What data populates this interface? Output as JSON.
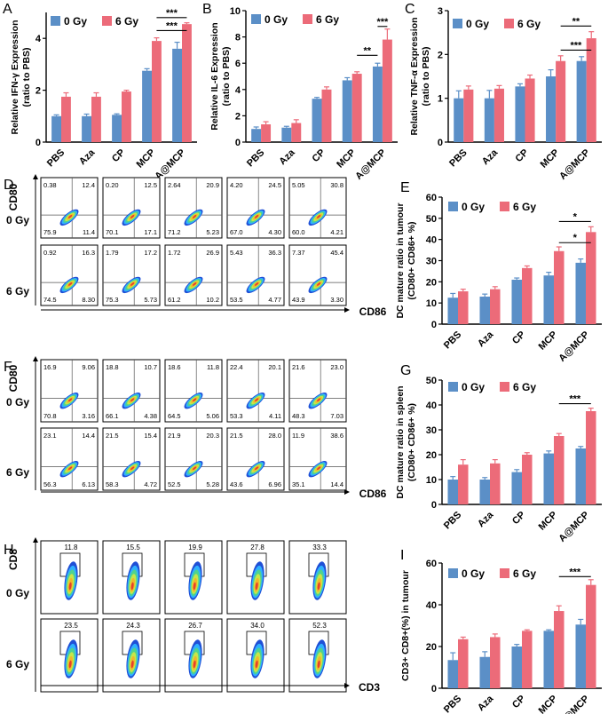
{
  "colors": {
    "gy0": "#5b8fc7",
    "gy6": "#ec6b79",
    "axis": "#000000"
  },
  "panel_labels": [
    "A",
    "B",
    "C",
    "D",
    "E",
    "F",
    "G",
    "H",
    "I"
  ],
  "chart_data": [
    {
      "id": "A",
      "type": "bar",
      "ylabel": "Relative IFN-γ Expression (ratio to PBS)",
      "categories": [
        "PBS",
        "Aza",
        "CP",
        "MCP",
        "A@MCP"
      ],
      "series": [
        {
          "name": "0 Gy",
          "values": [
            1.0,
            1.0,
            1.05,
            2.75,
            3.6
          ],
          "errors": [
            0.05,
            0.08,
            0.04,
            0.08,
            0.25
          ]
        },
        {
          "name": "6 Gy",
          "values": [
            1.75,
            1.75,
            1.95,
            3.9,
            4.55
          ],
          "errors": [
            0.15,
            0.15,
            0.05,
            0.12,
            0.05
          ]
        }
      ],
      "ylim": [
        0,
        5
      ],
      "yticks": [
        0,
        2,
        4
      ],
      "significance": [
        {
          "from": [
            3,
            "6 Gy"
          ],
          "to": [
            4,
            "6 Gy"
          ],
          "label": "***",
          "y": 4.3
        },
        {
          "from": [
            3,
            "6 Gy"
          ],
          "to": [
            4,
            "6 Gy"
          ],
          "label": "***",
          "y": 4.8
        }
      ]
    },
    {
      "id": "B",
      "type": "bar",
      "ylabel": "Relative IL-6 Expression (ratio to PBS)",
      "categories": [
        "PBS",
        "Aza",
        "CP",
        "MCP",
        "A@MCP"
      ],
      "series": [
        {
          "name": "0 Gy",
          "values": [
            1.0,
            1.1,
            3.3,
            4.7,
            5.75
          ],
          "errors": [
            0.15,
            0.1,
            0.1,
            0.2,
            0.25
          ]
        },
        {
          "name": "6 Gy",
          "values": [
            1.35,
            1.45,
            4.0,
            5.2,
            7.8
          ],
          "errors": [
            0.2,
            0.25,
            0.2,
            0.15,
            0.8
          ]
        }
      ],
      "ylim": [
        0,
        10
      ],
      "yticks": [
        0,
        2,
        4,
        6,
        8,
        10
      ],
      "significance": [
        {
          "from": [
            3,
            "6 Gy"
          ],
          "to": [
            4,
            "0 Gy"
          ],
          "label": "**",
          "y": 6.6
        },
        {
          "from": [
            4,
            "0 Gy"
          ],
          "to": [
            4,
            "6 Gy"
          ],
          "label": "***",
          "y": 8.8
        }
      ]
    },
    {
      "id": "C",
      "type": "bar",
      "ylabel": "Relative TNF-α Expression (ratio to PBS)",
      "categories": [
        "PBS",
        "Aza",
        "CP",
        "MCP",
        "A@MCP"
      ],
      "series": [
        {
          "name": "0 Gy",
          "values": [
            1.0,
            1.0,
            1.27,
            1.5,
            1.85
          ],
          "errors": [
            0.17,
            0.18,
            0.06,
            0.15,
            0.1
          ]
        },
        {
          "name": "6 Gy",
          "values": [
            1.2,
            1.22,
            1.45,
            1.85,
            2.37
          ],
          "errors": [
            0.08,
            0.07,
            0.08,
            0.12,
            0.15
          ]
        }
      ],
      "ylim": [
        0,
        3
      ],
      "yticks": [
        0,
        1,
        2,
        3
      ],
      "significance": [
        {
          "from": [
            3,
            "6 Gy"
          ],
          "to": [
            4,
            "6 Gy"
          ],
          "label": "***",
          "y": 2.1
        },
        {
          "from": [
            3,
            "6 Gy"
          ],
          "to": [
            4,
            "6 Gy"
          ],
          "label": "**",
          "y": 2.65
        }
      ]
    },
    {
      "id": "E",
      "type": "bar",
      "ylabel": "DC mature ratio in tumour (CD80+ CD86+ %)",
      "categories": [
        "PBS",
        "Aza",
        "CP",
        "MCP",
        "A@MCP"
      ],
      "series": [
        {
          "name": "0 Gy",
          "values": [
            12.5,
            13.0,
            21.0,
            23.0,
            29.0
          ],
          "errors": [
            2.0,
            1.2,
            0.8,
            1.5,
            1.8
          ]
        },
        {
          "name": "6 Gy",
          "values": [
            15.5,
            16.5,
            26.5,
            34.5,
            43.5
          ],
          "errors": [
            1.0,
            1.2,
            1.0,
            2.0,
            2.5
          ]
        }
      ],
      "ylim": [
        0,
        60
      ],
      "yticks": [
        0,
        10,
        20,
        30,
        40,
        50,
        60
      ],
      "significance": [
        {
          "from": [
            3,
            "6 Gy"
          ],
          "to": [
            4,
            "6 Gy"
          ],
          "label": "*",
          "y": 38.5
        },
        {
          "from": [
            3,
            "6 Gy"
          ],
          "to": [
            4,
            "6 Gy"
          ],
          "label": "*",
          "y": 48.5
        }
      ]
    },
    {
      "id": "G",
      "type": "bar",
      "ylabel": "DC mature ratio in spleen (CD80+ CD86+ %)",
      "categories": [
        "PBS",
        "Aza",
        "CP",
        "MCP",
        "A@MCP"
      ],
      "series": [
        {
          "name": "0 Gy",
          "values": [
            10.0,
            10.0,
            13.0,
            20.5,
            22.5
          ],
          "errors": [
            1.2,
            0.8,
            1.0,
            1.0,
            0.8
          ]
        },
        {
          "name": "6 Gy",
          "values": [
            16.0,
            16.5,
            20.0,
            27.5,
            37.5
          ],
          "errors": [
            2.0,
            1.5,
            0.8,
            1.0,
            1.2
          ]
        }
      ],
      "ylim": [
        0,
        50
      ],
      "yticks": [
        0,
        10,
        20,
        30,
        40,
        50
      ],
      "significance": [
        {
          "from": [
            3,
            "6 Gy"
          ],
          "to": [
            4,
            "6 Gy"
          ],
          "label": "***",
          "y": 40.5
        }
      ]
    },
    {
      "id": "I",
      "type": "bar",
      "ylabel": "CD3+ CD8+(%) in tumour",
      "categories": [
        "PBS",
        "Aza",
        "CP",
        "MCP",
        "A@MCP"
      ],
      "series": [
        {
          "name": "0 Gy",
          "values": [
            13.5,
            15.0,
            20.0,
            27.5,
            30.5
          ],
          "errors": [
            3.5,
            2.5,
            1.0,
            0.5,
            2.5
          ]
        },
        {
          "name": "6 Gy",
          "values": [
            23.5,
            24.5,
            27.5,
            37.0,
            49.5
          ],
          "errors": [
            1.0,
            1.5,
            0.5,
            2.5,
            2.5
          ]
        }
      ],
      "ylim": [
        0,
        60
      ],
      "yticks": [
        0,
        20,
        40,
        60
      ],
      "significance": [
        {
          "from": [
            3,
            "6 Gy"
          ],
          "to": [
            4,
            "6 Gy"
          ],
          "label": "***",
          "y": 53.5
        }
      ]
    }
  ],
  "flow_panels": [
    {
      "id": "D",
      "x_label": "CD86",
      "y_label": "CD80",
      "rows": [
        "0 Gy",
        "6 Gy"
      ],
      "quadrant": true,
      "values": [
        [
          [
            "0.38",
            "12.4",
            "75.9",
            "11.4"
          ],
          [
            "0.20",
            "12.5",
            "70.1",
            "17.1"
          ],
          [
            "2.64",
            "20.9",
            "71.2",
            "5.23"
          ],
          [
            "4.20",
            "24.5",
            "67.0",
            "4.30"
          ],
          [
            "5.05",
            "30.8",
            "60.0",
            "4.21"
          ]
        ],
        [
          [
            "0.92",
            "16.3",
            "74.5",
            "8.30"
          ],
          [
            "1.79",
            "17.2",
            "75.3",
            "5.73"
          ],
          [
            "1.72",
            "26.9",
            "61.2",
            "10.2"
          ],
          [
            "5.43",
            "36.3",
            "53.5",
            "4.77"
          ],
          [
            "7.37",
            "45.4",
            "43.9",
            "3.30"
          ]
        ]
      ]
    },
    {
      "id": "F",
      "x_label": "CD86",
      "y_label": "CD80",
      "rows": [
        "0 Gy",
        "6 Gy"
      ],
      "quadrant": true,
      "values": [
        [
          [
            "16.9",
            "9.06",
            "70.8",
            "3.16"
          ],
          [
            "18.8",
            "10.7",
            "66.1",
            "4.38"
          ],
          [
            "18.6",
            "11.8",
            "64.5",
            "5.06"
          ],
          [
            "22.4",
            "20.1",
            "53.3",
            "4.11"
          ],
          [
            "21.6",
            "23.0",
            "48.3",
            "7.03"
          ]
        ],
        [
          [
            "23.1",
            "14.4",
            "56.3",
            "6.13"
          ],
          [
            "21.5",
            "15.4",
            "58.3",
            "4.72"
          ],
          [
            "21.9",
            "20.3",
            "52.5",
            "5.28"
          ],
          [
            "21.5",
            "28.0",
            "43.6",
            "6.96"
          ],
          [
            "11.9",
            "38.6",
            "35.1",
            "14.4"
          ]
        ]
      ]
    },
    {
      "id": "H",
      "x_label": "CD3",
      "y_label": "CD8",
      "rows": [
        "0 Gy",
        "6 Gy"
      ],
      "quadrant": false,
      "values": [
        [
          "11.8",
          "15.5",
          "19.9",
          "27.8",
          "33.3"
        ],
        [
          "23.5",
          "24.3",
          "26.7",
          "34.0",
          "52.3"
        ]
      ]
    }
  ]
}
